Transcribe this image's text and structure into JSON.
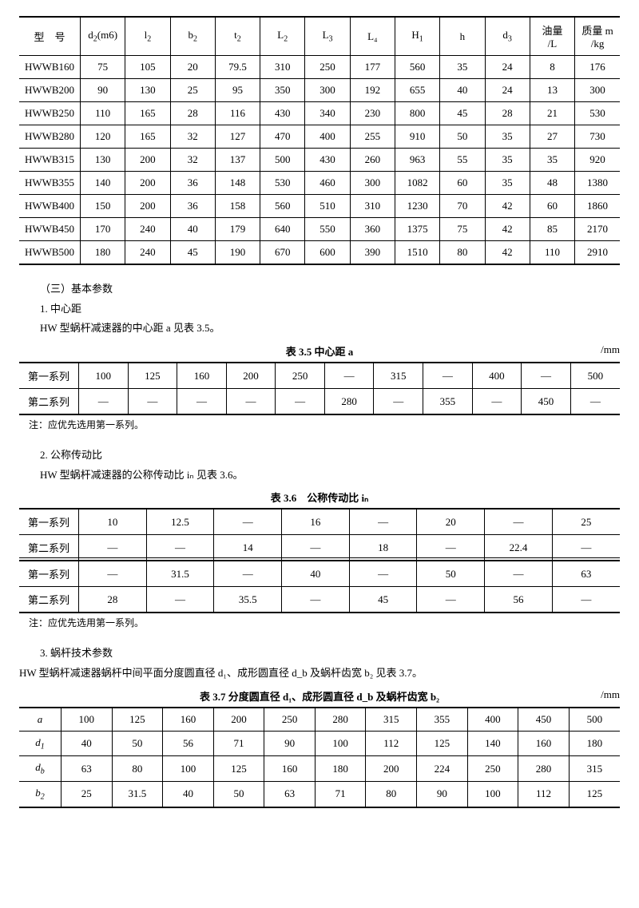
{
  "table1": {
    "headers": [
      "型　号",
      "d₂(m6)",
      "l₂",
      "b₂",
      "t₂",
      "L₂",
      "L₃",
      "L₄",
      "H₁",
      "h",
      "d₃",
      "油量\n/L",
      "质量 m\n/kg"
    ],
    "rows": [
      [
        "HWWB160",
        "75",
        "105",
        "20",
        "79.5",
        "310",
        "250",
        "177",
        "560",
        "35",
        "24",
        "8",
        "176"
      ],
      [
        "HWWB200",
        "90",
        "130",
        "25",
        "95",
        "350",
        "300",
        "192",
        "655",
        "40",
        "24",
        "13",
        "300"
      ],
      [
        "HWWB250",
        "110",
        "165",
        "28",
        "116",
        "430",
        "340",
        "230",
        "800",
        "45",
        "28",
        "21",
        "530"
      ],
      [
        "HWWB280",
        "120",
        "165",
        "32",
        "127",
        "470",
        "400",
        "255",
        "910",
        "50",
        "35",
        "27",
        "730"
      ],
      [
        "HWWB315",
        "130",
        "200",
        "32",
        "137",
        "500",
        "430",
        "260",
        "963",
        "55",
        "35",
        "35",
        "920"
      ],
      [
        "HWWB355",
        "140",
        "200",
        "36",
        "148",
        "530",
        "460",
        "300",
        "1082",
        "60",
        "35",
        "48",
        "1380"
      ],
      [
        "HWWB400",
        "150",
        "200",
        "36",
        "158",
        "560",
        "510",
        "310",
        "1230",
        "70",
        "42",
        "60",
        "1860"
      ],
      [
        "HWWB450",
        "170",
        "240",
        "40",
        "179",
        "640",
        "550",
        "360",
        "1375",
        "75",
        "42",
        "85",
        "2170"
      ],
      [
        "HWWB500",
        "180",
        "240",
        "45",
        "190",
        "670",
        "600",
        "390",
        "1510",
        "80",
        "42",
        "110",
        "2910"
      ]
    ]
  },
  "text": {
    "s3_title": "（三）基本参数",
    "s3_1_title": "1. 中心距",
    "s3_1_body": "HW 型蜗杆减速器的中心距 a 见表 3.5。",
    "cap35": "表 3.5 中心距 a",
    "unit_mm": "/mm",
    "note_pref": "注：应优先选用第一系列。",
    "s3_2_title": "2. 公称传动比",
    "s3_2_body": "HW 型蜗杆减速器的公称传动比 iₙ 见表 3.6。",
    "cap36": "表 3.6　公称传动比 iₙ",
    "s3_3_title": "3. 蜗杆技术参数",
    "s3_3_body": "HW 型蜗杆减速器蜗杆中间平面分度圆直径 d₁、成形圆直径 d_b 及蜗杆齿宽 b₂ 见表 3.7。",
    "cap37": "表 3.7 分度圆直径 d₁、成形圆直径 d_b 及蜗杆齿宽 b₂",
    "series1": "第一系列",
    "series2": "第二系列"
  },
  "table35": {
    "rows": [
      [
        "第一系列",
        "100",
        "125",
        "160",
        "200",
        "250",
        "—",
        "315",
        "—",
        "400",
        "—",
        "500"
      ],
      [
        "第二系列",
        "—",
        "—",
        "—",
        "—",
        "—",
        "280",
        "—",
        "355",
        "—",
        "450",
        "—"
      ]
    ]
  },
  "table36": {
    "rows": [
      [
        "第一系列",
        "10",
        "12.5",
        "—",
        "16",
        "—",
        "20",
        "—",
        "25"
      ],
      [
        "第二系列",
        "—",
        "—",
        "14",
        "—",
        "18",
        "—",
        "22.4",
        "—"
      ],
      [
        "第一系列",
        "—",
        "31.5",
        "—",
        "40",
        "—",
        "50",
        "—",
        "63"
      ],
      [
        "第二系列",
        "28",
        "—",
        "35.5",
        "—",
        "45",
        "—",
        "56",
        "—"
      ]
    ]
  },
  "table37": {
    "rows": [
      [
        "a",
        "100",
        "125",
        "160",
        "200",
        "250",
        "280",
        "315",
        "355",
        "400",
        "450",
        "500"
      ],
      [
        "d₁",
        "40",
        "50",
        "56",
        "71",
        "90",
        "100",
        "112",
        "125",
        "140",
        "160",
        "180"
      ],
      [
        "d_b",
        "63",
        "80",
        "100",
        "125",
        "160",
        "180",
        "200",
        "224",
        "250",
        "280",
        "315"
      ],
      [
        "b₂",
        "25",
        "31.5",
        "40",
        "50",
        "63",
        "71",
        "80",
        "90",
        "100",
        "112",
        "125"
      ]
    ]
  }
}
